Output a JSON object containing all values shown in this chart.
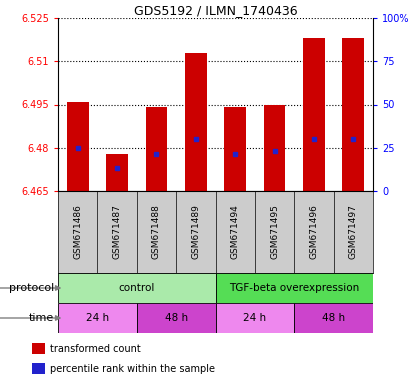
{
  "title": "GDS5192 / ILMN_1740436",
  "samples": [
    "GSM671486",
    "GSM671487",
    "GSM671488",
    "GSM671489",
    "GSM671494",
    "GSM671495",
    "GSM671496",
    "GSM671497"
  ],
  "bar_tops": [
    6.496,
    6.478,
    6.494,
    6.513,
    6.494,
    6.495,
    6.518,
    6.518
  ],
  "bar_bottoms": [
    6.465,
    6.465,
    6.465,
    6.465,
    6.465,
    6.465,
    6.465,
    6.465
  ],
  "blue_marks": [
    6.48,
    6.473,
    6.478,
    6.483,
    6.478,
    6.479,
    6.483,
    6.483
  ],
  "ylim": [
    6.465,
    6.525
  ],
  "yticks_left": [
    6.465,
    6.48,
    6.495,
    6.51,
    6.525
  ],
  "ytick_labels_left": [
    "6.465",
    "6.48",
    "6.495",
    "6.51",
    "6.525"
  ],
  "yticks_right": [
    0,
    25,
    50,
    75,
    100
  ],
  "ytick_labels_right": [
    "0",
    "25",
    "50",
    "75",
    "100%"
  ],
  "bar_color": "#cc0000",
  "blue_color": "#2222cc",
  "protocol_groups": [
    {
      "label": "control",
      "start": 0,
      "end": 4,
      "color": "#aaeaaa"
    },
    {
      "label": "TGF-beta overexpression",
      "start": 4,
      "end": 8,
      "color": "#55dd55"
    }
  ],
  "time_groups": [
    {
      "label": "24 h",
      "start": 0,
      "end": 2,
      "color": "#ee88ee"
    },
    {
      "label": "48 h",
      "start": 2,
      "end": 4,
      "color": "#cc44cc"
    },
    {
      "label": "24 h",
      "start": 4,
      "end": 6,
      "color": "#ee88ee"
    },
    {
      "label": "48 h",
      "start": 6,
      "end": 8,
      "color": "#cc44cc"
    }
  ],
  "legend_items": [
    {
      "label": "transformed count",
      "color": "#cc0000"
    },
    {
      "label": "percentile rank within the sample",
      "color": "#2222cc"
    }
  ],
  "dotted_yticks": [
    6.48,
    6.495,
    6.51,
    6.525
  ],
  "bar_width": 0.55,
  "sample_label_bg": "#cccccc",
  "fig_bg": "#ffffff"
}
